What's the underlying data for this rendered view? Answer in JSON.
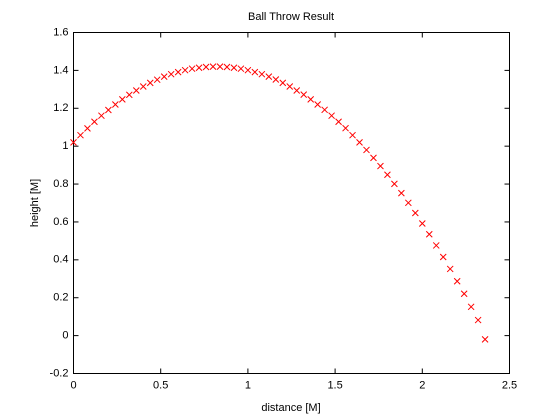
{
  "chart_data": {
    "type": "scatter",
    "title": "Ball Throw Result",
    "xlabel": "distance [M]",
    "ylabel": "height [M]",
    "marker": "x",
    "color": "#ff0000",
    "x": [
      0,
      0.04,
      0.08,
      0.12,
      0.16,
      0.2,
      0.24,
      0.28,
      0.32,
      0.36,
      0.4,
      0.44,
      0.48,
      0.52,
      0.56,
      0.6,
      0.64,
      0.68,
      0.72,
      0.76,
      0.8,
      0.84,
      0.88,
      0.92,
      0.96,
      1.0,
      1.04,
      1.08,
      1.12,
      1.16,
      1.2,
      1.24,
      1.28,
      1.32,
      1.36,
      1.4,
      1.44,
      1.48,
      1.52,
      1.56,
      1.6,
      1.64,
      1.68,
      1.72,
      1.76,
      1.8,
      1.84,
      1.88,
      1.92,
      1.96,
      2.0,
      2.04,
      2.08,
      2.12,
      2.16,
      2.2,
      2.24,
      2.28,
      2.32,
      2.36
    ],
    "values": [
      1.02,
      1.058,
      1.094,
      1.129,
      1.161,
      1.191,
      1.22,
      1.247,
      1.271,
      1.294,
      1.315,
      1.334,
      1.351,
      1.367,
      1.38,
      1.391,
      1.401,
      1.409,
      1.414,
      1.418,
      1.42,
      1.42,
      1.418,
      1.414,
      1.409,
      1.401,
      1.391,
      1.38,
      1.367,
      1.352,
      1.334,
      1.315,
      1.294,
      1.272,
      1.247,
      1.22,
      1.192,
      1.161,
      1.129,
      1.095,
      1.058,
      1.02,
      0.98,
      0.938,
      0.895,
      0.849,
      0.801,
      0.752,
      0.701,
      0.647,
      0.592,
      0.535,
      0.476,
      0.415,
      0.352,
      0.287,
      0.221,
      0.152,
      0.082,
      -0.02
    ],
    "xlim": [
      0,
      2.5
    ],
    "xticks": [
      0,
      0.5,
      1,
      1.5,
      2,
      2.5
    ],
    "ylim": [
      -0.2,
      1.6
    ],
    "yticks": [
      -0.2,
      0,
      0.2,
      0.4,
      0.6,
      0.8,
      1,
      1.2,
      1.4,
      1.6
    ],
    "grid": false
  }
}
